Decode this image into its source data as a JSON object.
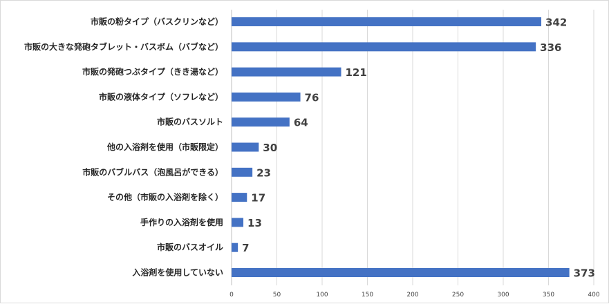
{
  "colors": {
    "bar": "#4472C4",
    "grid": "#d9d9d9",
    "axis": "#bfbfbf"
  },
  "chart_data": {
    "type": "bar",
    "orientation": "horizontal",
    "categories": [
      "市販の粉タイプ（バスクリンなど）",
      "市販の大きな発砲タブレット・バスボム（バブなど）",
      "市販の発砲つぶタイプ（きき湯など）",
      "市販の液体タイプ（ソフレなど）",
      "市販のバスソルト",
      "他の入浴剤を使用（市販限定）",
      "市販のバブルバス（泡風呂ができる）",
      "その他（市販の入浴剤を除く）",
      "手作りの入浴剤を使用",
      "市販のバスオイル",
      "入浴剤を使用していない"
    ],
    "values": [
      342,
      336,
      121,
      76,
      64,
      30,
      23,
      17,
      13,
      7,
      373
    ],
    "xlim": [
      0,
      400
    ],
    "xticks": [
      "0",
      "50",
      "100",
      "150",
      "200",
      "250",
      "300",
      "350",
      "400"
    ],
    "grid": true,
    "legend": "none"
  }
}
